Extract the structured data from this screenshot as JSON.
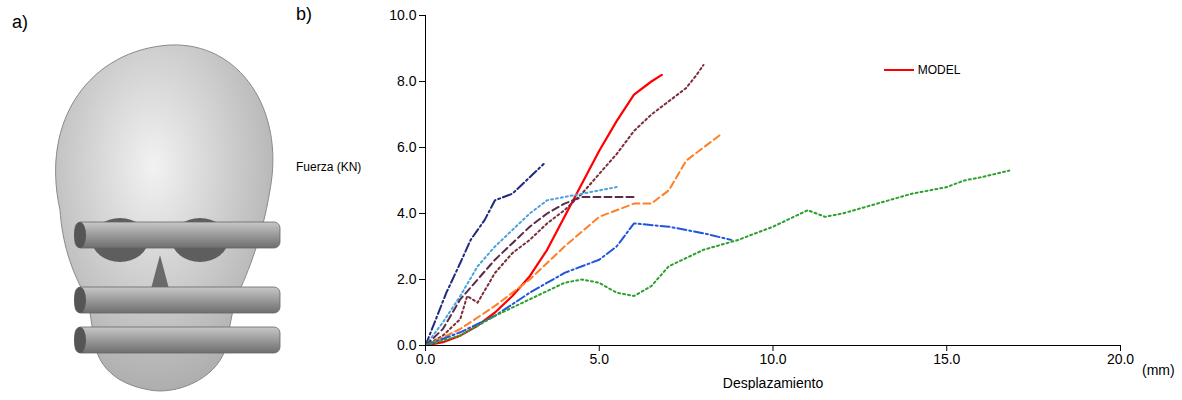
{
  "image_panel": {
    "label": "a)"
  },
  "chart_data": {
    "type": "line",
    "panel_label": "b)",
    "xlabel": "Desplazamiento",
    "xunit": "(mm)",
    "ylabel": "Fuerza (KN)",
    "xlim": [
      0,
      20
    ],
    "ylim": [
      0,
      10
    ],
    "xticks": [
      {
        "value": 0,
        "label": "0.0"
      },
      {
        "value": 5,
        "label": "5.0"
      },
      {
        "value": 10,
        "label": "10.0"
      },
      {
        "value": 15,
        "label": "15.0"
      },
      {
        "value": 20,
        "label": "20.0"
      }
    ],
    "yticks": [
      {
        "value": 0,
        "label": "0.0"
      },
      {
        "value": 2,
        "label": "2.0"
      },
      {
        "value": 4,
        "label": "4.0"
      },
      {
        "value": 6,
        "label": "6.0"
      },
      {
        "value": 8,
        "label": "8.0"
      },
      {
        "value": 10,
        "label": "10.0"
      }
    ],
    "grid": false,
    "legend": "top-right",
    "series": [
      {
        "name": "MODEL",
        "color": "#ff0000",
        "line_style": "solid",
        "x": [
          0,
          0.5,
          1,
          1.5,
          2,
          2.5,
          3,
          3.5,
          4,
          4.5,
          5,
          5.5,
          6,
          6.5,
          6.8
        ],
        "values": [
          0,
          0.1,
          0.3,
          0.6,
          1.0,
          1.5,
          2.1,
          2.9,
          3.9,
          4.9,
          5.9,
          6.8,
          7.6,
          8.0,
          8.2
        ]
      },
      {
        "name": null,
        "color": "#7b2d3a",
        "line_style": "dotted",
        "x": [
          0,
          0.5,
          1,
          1.2,
          1.5,
          2,
          2.5,
          3,
          3.5,
          4,
          4.5,
          5,
          5.5,
          6,
          6.5,
          7,
          7.5,
          7.8,
          8
        ],
        "values": [
          0,
          0.3,
          0.8,
          1.5,
          1.3,
          2.2,
          2.8,
          3.2,
          3.7,
          4.1,
          4.6,
          5.2,
          5.8,
          6.5,
          7.0,
          7.4,
          7.8,
          8.2,
          8.5
        ]
      },
      {
        "name": null,
        "color": "#1f2a7a",
        "line_style": "dashdot",
        "x": [
          0,
          0.3,
          0.6,
          1,
          1.3,
          1.7,
          2,
          2.5,
          3,
          3.4
        ],
        "values": [
          0,
          0.8,
          1.6,
          2.5,
          3.2,
          3.8,
          4.4,
          4.6,
          5.1,
          5.5
        ]
      },
      {
        "name": null,
        "color": "#4aa3df",
        "line_style": "dotted",
        "x": [
          0,
          0.5,
          1,
          1.5,
          2,
          2.5,
          3,
          3.5,
          4,
          4.5,
          5,
          5.5
        ],
        "values": [
          0,
          0.7,
          1.5,
          2.4,
          3.0,
          3.5,
          4.0,
          4.4,
          4.5,
          4.6,
          4.7,
          4.8
        ]
      },
      {
        "name": null,
        "color": "#5a2a4a",
        "line_style": "dashed",
        "x": [
          0,
          0.5,
          1,
          1.5,
          2,
          2.5,
          3,
          3.5,
          4,
          4.5,
          5,
          5.5,
          6
        ],
        "values": [
          0,
          0.5,
          1.4,
          2.0,
          2.6,
          3.1,
          3.6,
          4.0,
          4.3,
          4.5,
          4.5,
          4.5,
          4.5
        ]
      },
      {
        "name": null,
        "color": "#ff7f27",
        "line_style": "dashed",
        "x": [
          0,
          1,
          2,
          3,
          4,
          5,
          6,
          6.5,
          7,
          7.5,
          8,
          8.5
        ],
        "values": [
          0,
          0.5,
          1.2,
          2.0,
          3.0,
          3.9,
          4.3,
          4.3,
          4.7,
          5.6,
          6.0,
          6.4
        ]
      },
      {
        "name": null,
        "color": "#2255dd",
        "line_style": "dashdot",
        "x": [
          0,
          1,
          2,
          3,
          4,
          5,
          5.5,
          6,
          7,
          8,
          8.8
        ],
        "values": [
          0,
          0.4,
          0.9,
          1.6,
          2.2,
          2.6,
          3.0,
          3.7,
          3.6,
          3.4,
          3.2
        ]
      },
      {
        "name": null,
        "color": "#2ca02c",
        "line_style": "dotted",
        "x": [
          0,
          1,
          2,
          3,
          4,
          4.5,
          5,
          5.5,
          6,
          6.5,
          7,
          8,
          9,
          10,
          11,
          11.5,
          12,
          13,
          14,
          15,
          15.5,
          16,
          16.8
        ],
        "values": [
          0,
          0.3,
          0.9,
          1.4,
          1.9,
          2.0,
          1.9,
          1.6,
          1.5,
          1.8,
          2.4,
          2.9,
          3.2,
          3.6,
          4.1,
          3.9,
          4.0,
          4.3,
          4.6,
          4.8,
          5.0,
          5.1,
          5.3
        ]
      }
    ]
  }
}
